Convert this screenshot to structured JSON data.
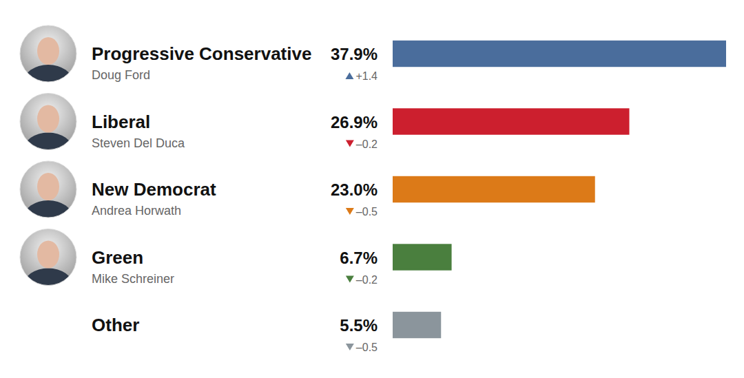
{
  "chart_data": {
    "type": "bar",
    "orientation": "horizontal",
    "categories": [
      "Progressive Conservative",
      "Liberal",
      "New Democrat",
      "Green",
      "Other"
    ],
    "leaders": [
      "Doug Ford",
      "Steven Del Duca",
      "Andrea Horwath",
      "Mike Schreiner",
      null
    ],
    "values": [
      37.9,
      26.9,
      23.0,
      6.7,
      5.5
    ],
    "value_labels": [
      "37.9%",
      "26.9%",
      "23.0%",
      "6.7%",
      "5.5%"
    ],
    "changes": [
      1.4,
      -0.2,
      -0.5,
      -0.2,
      -0.5
    ],
    "change_labels": [
      "+1.4",
      "–0.2",
      "–0.5",
      "–0.2",
      "–0.5"
    ],
    "colors": [
      "#4a6d9c",
      "#cc1f2e",
      "#dc7a18",
      "#4a7f3e",
      "#8b959c"
    ],
    "xlim": [
      0,
      37.9
    ],
    "grid": false,
    "data_labels": true,
    "tick_labels": false
  }
}
